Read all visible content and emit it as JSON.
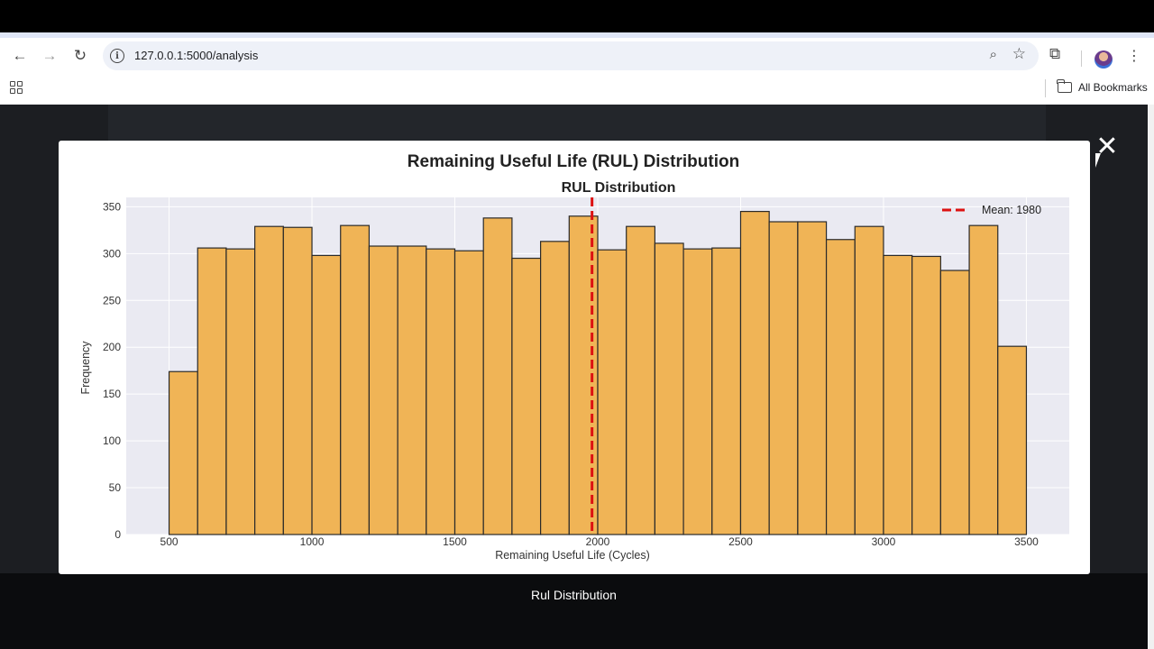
{
  "browser": {
    "url": "127.0.0.1:5000/analysis",
    "bookmarks_label": "All Bookmarks"
  },
  "modal": {
    "title": "Remaining Useful Life (RUL) Distribution",
    "caption": "Rul Distribution",
    "close_symbol": "✕"
  },
  "chart_data": {
    "type": "bar",
    "title": "RUL Distribution",
    "xlabel": "Remaining Useful Life (Cycles)",
    "ylabel": "Frequency",
    "xlim": [
      350,
      3650
    ],
    "ylim": [
      0,
      360
    ],
    "xticks": [
      500,
      1000,
      1500,
      2000,
      2500,
      3000,
      3500
    ],
    "yticks": [
      0,
      50,
      100,
      150,
      200,
      250,
      300,
      350
    ],
    "bin_edges": [
      500,
      600,
      700,
      800,
      900,
      1000,
      1100,
      1200,
      1300,
      1400,
      1500,
      1600,
      1700,
      1800,
      1900,
      2000,
      2100,
      2200,
      2300,
      2400,
      2500,
      2600,
      2700,
      2800,
      2900,
      3000,
      3100,
      3200,
      3300,
      3400,
      3500
    ],
    "values": [
      174,
      306,
      305,
      329,
      328,
      298,
      330,
      308,
      308,
      305,
      303,
      338,
      295,
      313,
      340,
      304,
      329,
      311,
      305,
      306,
      345,
      334,
      334,
      315,
      329,
      298,
      297,
      282,
      330,
      201
    ],
    "mean": 1980,
    "mean_label": "Mean: 1980",
    "bar_color": "#f0b456",
    "mean_color": "#dd1111",
    "grid": true,
    "legend": "top-right"
  }
}
